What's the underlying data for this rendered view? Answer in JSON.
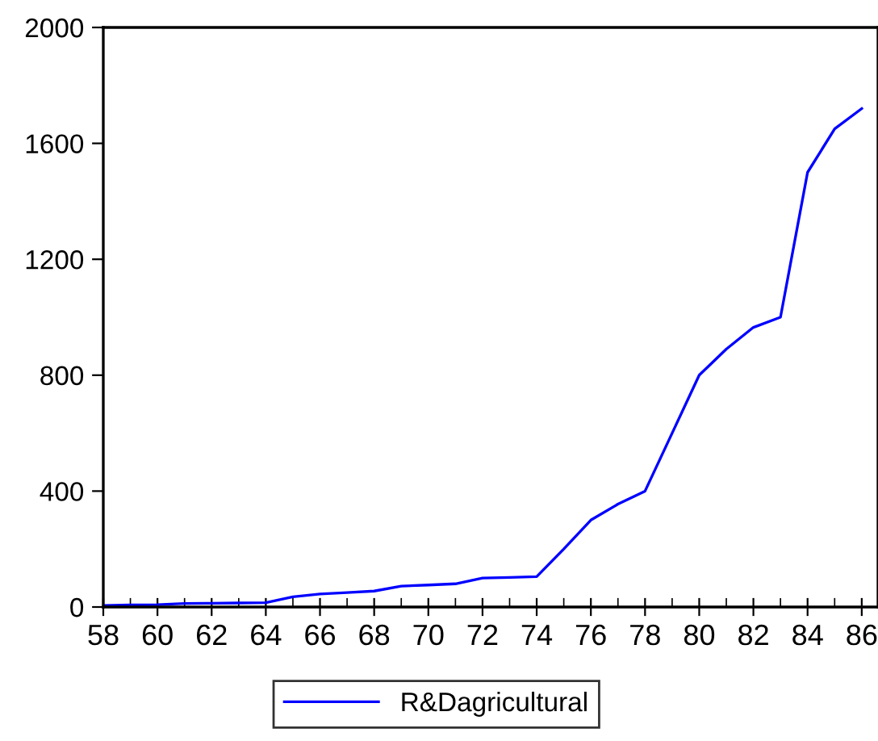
{
  "chart_data": {
    "type": "line",
    "x": [
      58,
      59,
      60,
      61,
      62,
      63,
      64,
      65,
      66,
      67,
      68,
      69,
      70,
      71,
      72,
      73,
      74,
      75,
      76,
      77,
      78,
      79,
      80,
      81,
      82,
      83,
      84,
      85,
      86
    ],
    "series": [
      {
        "name": "R&Dagricultural",
        "color": "#0000ff",
        "values": [
          5,
          7,
          8,
          12,
          13,
          14,
          15,
          35,
          45,
          50,
          55,
          72,
          76,
          80,
          100,
          102,
          105,
          200,
          300,
          355,
          400,
          600,
          800,
          890,
          965,
          1000,
          1500,
          1650,
          1720
        ]
      }
    ],
    "xlim": [
      58,
      86.6
    ],
    "xticks": [
      58,
      60,
      62,
      64,
      66,
      68,
      70,
      72,
      74,
      76,
      78,
      80,
      82,
      84,
      86
    ],
    "ylim": [
      0,
      2000
    ],
    "yticks": [
      0,
      400,
      800,
      1200,
      1600,
      2000
    ],
    "grid": false,
    "legend": "bottom",
    "marker": "none",
    "line_style": "solid"
  }
}
